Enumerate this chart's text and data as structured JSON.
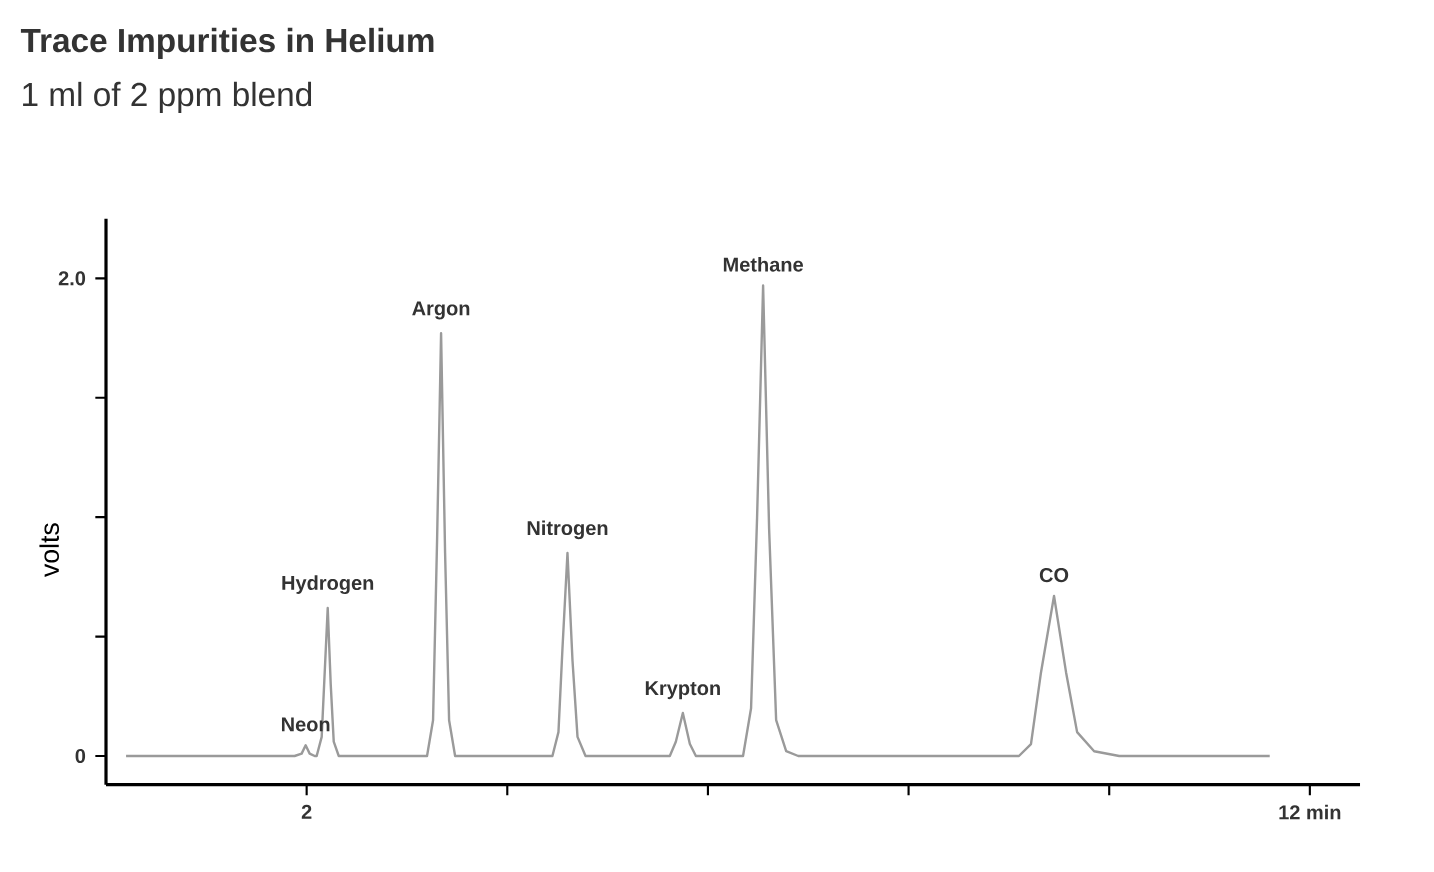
{
  "chart_data": {
    "type": "line",
    "title": "Trace Impurities in Helium",
    "subtitle": "1 ml of 2 ppm blend",
    "ylabel": "volts",
    "xlim": [
      0,
      12.5
    ],
    "ylim": [
      -0.12,
      2.25
    ],
    "xticks": [
      2,
      {
        "value": 4,
        "label": null
      },
      {
        "value": 6,
        "label": null
      },
      {
        "value": 8,
        "label": null
      },
      {
        "value": 10,
        "label": null
      },
      {
        "value": 12,
        "label": "12 min"
      }
    ],
    "yticks": [
      0,
      {
        "value": 0.5,
        "label": null
      },
      {
        "value": 1,
        "label": null
      },
      {
        "value": 1.5,
        "label": null
      },
      {
        "value": 2,
        "label": "2.0"
      }
    ],
    "series": [
      {
        "color": "#9a9a9a",
        "x": [
          0.2,
          1.88,
          1.95,
          1.99,
          2.03,
          2.08,
          2.1,
          2.15,
          2.18,
          2.21,
          2.24,
          2.27,
          2.32,
          3.2,
          3.26,
          3.3,
          3.34,
          3.38,
          3.42,
          3.48,
          4.45,
          4.51,
          4.55,
          4.6,
          4.65,
          4.7,
          4.78,
          5.62,
          5.68,
          5.75,
          5.82,
          5.88,
          6.35,
          6.43,
          6.49,
          6.55,
          6.61,
          6.68,
          6.78,
          6.9,
          9.1,
          9.22,
          9.32,
          9.45,
          9.57,
          9.68,
          9.85,
          10.1,
          11.6
        ],
        "values": [
          0,
          0,
          0.01,
          0.045,
          0.01,
          0,
          0,
          0.08,
          0.35,
          0.62,
          0.3,
          0.06,
          0,
          0,
          0.15,
          0.9,
          1.77,
          0.85,
          0.15,
          0,
          0,
          0.1,
          0.45,
          0.85,
          0.4,
          0.08,
          0,
          0,
          0.06,
          0.18,
          0.05,
          0,
          0,
          0.2,
          1.0,
          1.97,
          0.95,
          0.15,
          0.02,
          0,
          0,
          0.05,
          0.35,
          0.67,
          0.35,
          0.1,
          0.02,
          0,
          0
        ]
      }
    ],
    "annotations": [
      {
        "text": "Neon",
        "x": 1.99,
        "y": 0.045
      },
      {
        "text": "Hydrogen",
        "x": 2.21,
        "y": 0.62
      },
      {
        "text": "Argon",
        "x": 3.34,
        "y": 1.77
      },
      {
        "text": "Nitrogen",
        "x": 4.6,
        "y": 0.85
      },
      {
        "text": "Krypton",
        "x": 5.75,
        "y": 0.18
      },
      {
        "text": "Methane",
        "x": 6.55,
        "y": 1.97
      },
      {
        "text": "CO",
        "x": 9.45,
        "y": 0.67
      }
    ]
  }
}
